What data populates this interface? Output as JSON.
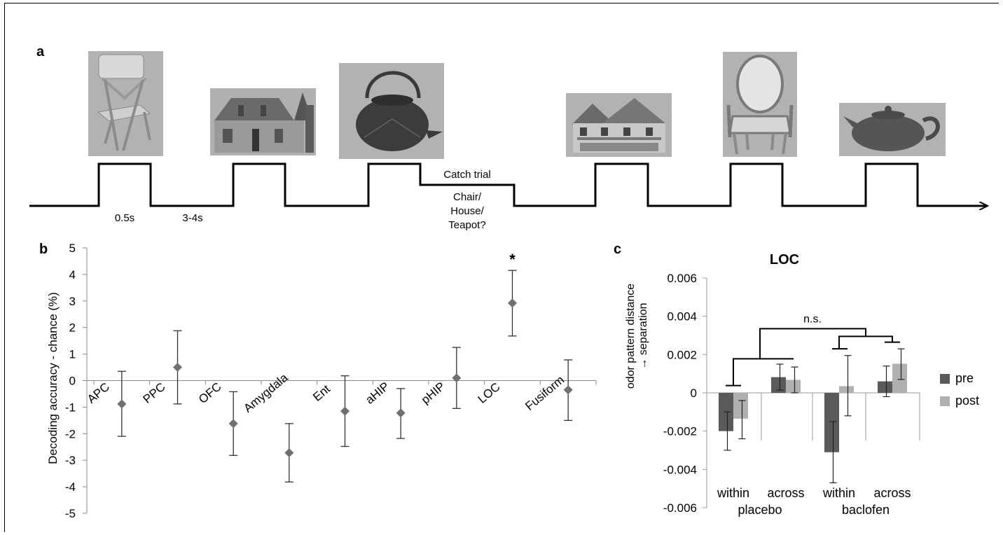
{
  "panel_a": {
    "letter": "a",
    "labels": {
      "duration_on": "0.5s",
      "duration_off": "3-4s",
      "catch_title": "Catch trial",
      "catch_lines": [
        "Chair/",
        "House/",
        "Teapot?"
      ]
    },
    "stimuli": [
      {
        "name": "chair",
        "icon": "folding-chair-image"
      },
      {
        "name": "house",
        "icon": "stone-house-image"
      },
      {
        "name": "teapot",
        "icon": "iron-teapot-image"
      },
      {
        "name": "house",
        "icon": "large-house-image"
      },
      {
        "name": "chair",
        "icon": "armchair-image"
      },
      {
        "name": "teapot",
        "icon": "clay-teapot-image"
      }
    ],
    "colors": {
      "photo_bg": "#b2b2b2",
      "line": "#000000"
    }
  },
  "chart_data": [
    {
      "panel": "b",
      "type": "scatter",
      "title": "",
      "xlabel": "",
      "ylabel": "Decoding accuracy - chance (%)",
      "ylim": [
        -5,
        5
      ],
      "yticks": [
        5,
        4,
        3,
        2,
        1,
        0,
        -1,
        -2,
        -3,
        -4,
        -5
      ],
      "categories": [
        "APC",
        "PPC",
        "OFC",
        "Amygdala",
        "Ent",
        "aHIP",
        "pHIP",
        "LOC",
        "Fusiform"
      ],
      "values": [
        -0.88,
        0.5,
        -1.62,
        -2.72,
        -1.15,
        -1.22,
        0.1,
        2.92,
        -0.35
      ],
      "error_low": [
        -2.1,
        -0.88,
        -2.82,
        -3.82,
        -2.48,
        -2.18,
        -1.05,
        1.68,
        -1.5
      ],
      "error_high": [
        0.35,
        1.88,
        -0.42,
        -1.62,
        0.18,
        -0.3,
        1.25,
        4.15,
        0.78
      ],
      "annotations": [
        {
          "category": "LOC",
          "text": "*"
        }
      ],
      "marker": "diamond",
      "color": "#707070"
    },
    {
      "panel": "c",
      "type": "bar",
      "title": "LOC",
      "ylabel_lines": [
        "odor pattern distance",
        "→ separation"
      ],
      "ylim": [
        -0.006,
        0.006
      ],
      "yticks": [
        "0.006",
        "0.004",
        "0.002",
        "0",
        "-0.002",
        "-0.004",
        "-0.006"
      ],
      "categories": [
        "within",
        "across",
        "within",
        "across"
      ],
      "groups": [
        "placebo",
        "baclofen"
      ],
      "series": [
        {
          "name": "pre",
          "color": "#5a5a5a",
          "values": [
            -0.002,
            0.00082,
            -0.0031,
            0.0006
          ],
          "error_low": [
            -0.003,
            0.00015,
            -0.0047,
            -0.0002
          ],
          "error_high": [
            -0.001,
            0.0015,
            -0.0015,
            0.0014
          ]
        },
        {
          "name": "post",
          "color": "#b0b0b0",
          "values": [
            -0.00135,
            0.00068,
            0.00035,
            0.00152
          ],
          "error_low": [
            -0.0024,
            0.0,
            -0.0012,
            0.0007
          ],
          "error_high": [
            -0.0004,
            0.00135,
            0.00195,
            0.0023
          ]
        }
      ],
      "annotations": [
        {
          "text": "n.s."
        }
      ],
      "legend": "right"
    }
  ]
}
